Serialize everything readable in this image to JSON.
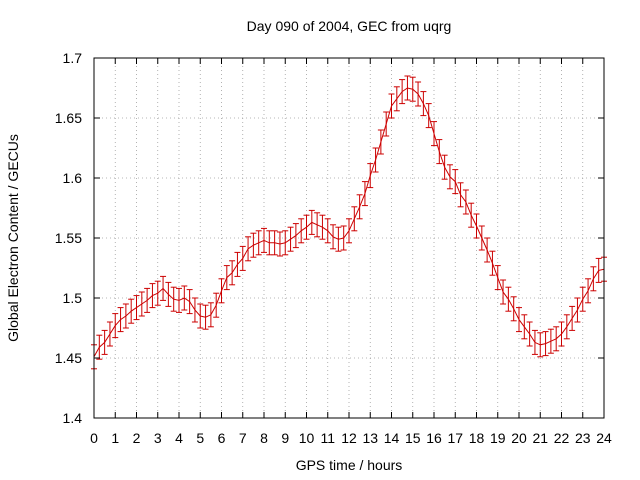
{
  "chart_data": {
    "type": "line",
    "title": "Day 090 of 2004, GEC from uqrg",
    "xlabel": "GPS time / hours",
    "ylabel": "Global Electron Content / GECUs",
    "xlim": [
      0,
      24
    ],
    "ylim": [
      1.4,
      1.7
    ],
    "xticks": [
      0,
      1,
      2,
      3,
      4,
      5,
      6,
      7,
      8,
      9,
      10,
      11,
      12,
      13,
      14,
      15,
      16,
      17,
      18,
      19,
      20,
      21,
      22,
      23,
      24
    ],
    "yticks": [
      1.4,
      1.45,
      1.5,
      1.55,
      1.6,
      1.65,
      1.7
    ],
    "ytick_labels": [
      "1.4",
      "1.45",
      "1.5",
      "1.55",
      "1.6",
      "1.65",
      "1.7"
    ],
    "grid": true,
    "error_bar_halfwidth": 0.01,
    "series": [
      {
        "color": "#cc0000",
        "x": [
          0,
          0.25,
          0.5,
          0.75,
          1,
          1.25,
          1.5,
          1.75,
          2,
          2.25,
          2.5,
          2.75,
          3,
          3.25,
          3.5,
          3.75,
          4,
          4.25,
          4.5,
          4.75,
          5,
          5.25,
          5.5,
          5.75,
          6,
          6.25,
          6.5,
          6.75,
          7,
          7.25,
          7.5,
          7.75,
          8,
          8.25,
          8.5,
          8.75,
          9,
          9.25,
          9.5,
          9.75,
          10,
          10.25,
          10.5,
          10.75,
          11,
          11.25,
          11.5,
          11.75,
          12,
          12.25,
          12.5,
          12.75,
          13,
          13.25,
          13.5,
          13.75,
          14,
          14.25,
          14.5,
          14.75,
          15,
          15.25,
          15.5,
          15.75,
          16,
          16.25,
          16.5,
          16.75,
          17,
          17.25,
          17.5,
          17.75,
          18,
          18.25,
          18.5,
          18.75,
          19,
          19.25,
          19.5,
          19.75,
          20,
          20.25,
          20.5,
          20.75,
          21,
          21.25,
          21.5,
          21.75,
          22,
          22.25,
          22.5,
          22.75,
          23,
          23.25,
          23.5,
          23.75,
          24
        ],
        "y": [
          1.451,
          1.459,
          1.463,
          1.47,
          1.477,
          1.482,
          1.485,
          1.489,
          1.492,
          1.495,
          1.498,
          1.502,
          1.504,
          1.508,
          1.503,
          1.499,
          1.498,
          1.5,
          1.497,
          1.49,
          1.485,
          1.484,
          1.486,
          1.494,
          1.506,
          1.517,
          1.521,
          1.528,
          1.533,
          1.541,
          1.544,
          1.546,
          1.548,
          1.546,
          1.546,
          1.545,
          1.546,
          1.549,
          1.552,
          1.556,
          1.559,
          1.563,
          1.561,
          1.559,
          1.556,
          1.551,
          1.549,
          1.55,
          1.556,
          1.566,
          1.576,
          1.587,
          1.602,
          1.615,
          1.63,
          1.645,
          1.66,
          1.666,
          1.672,
          1.675,
          1.674,
          1.67,
          1.662,
          1.652,
          1.637,
          1.622,
          1.609,
          1.601,
          1.597,
          1.586,
          1.58,
          1.569,
          1.56,
          1.55,
          1.54,
          1.529,
          1.517,
          1.505,
          1.499,
          1.491,
          1.482,
          1.476,
          1.47,
          1.463,
          1.461,
          1.462,
          1.464,
          1.466,
          1.47,
          1.476,
          1.483,
          1.49,
          1.499,
          1.506,
          1.516,
          1.523,
          1.524
        ]
      }
    ]
  }
}
